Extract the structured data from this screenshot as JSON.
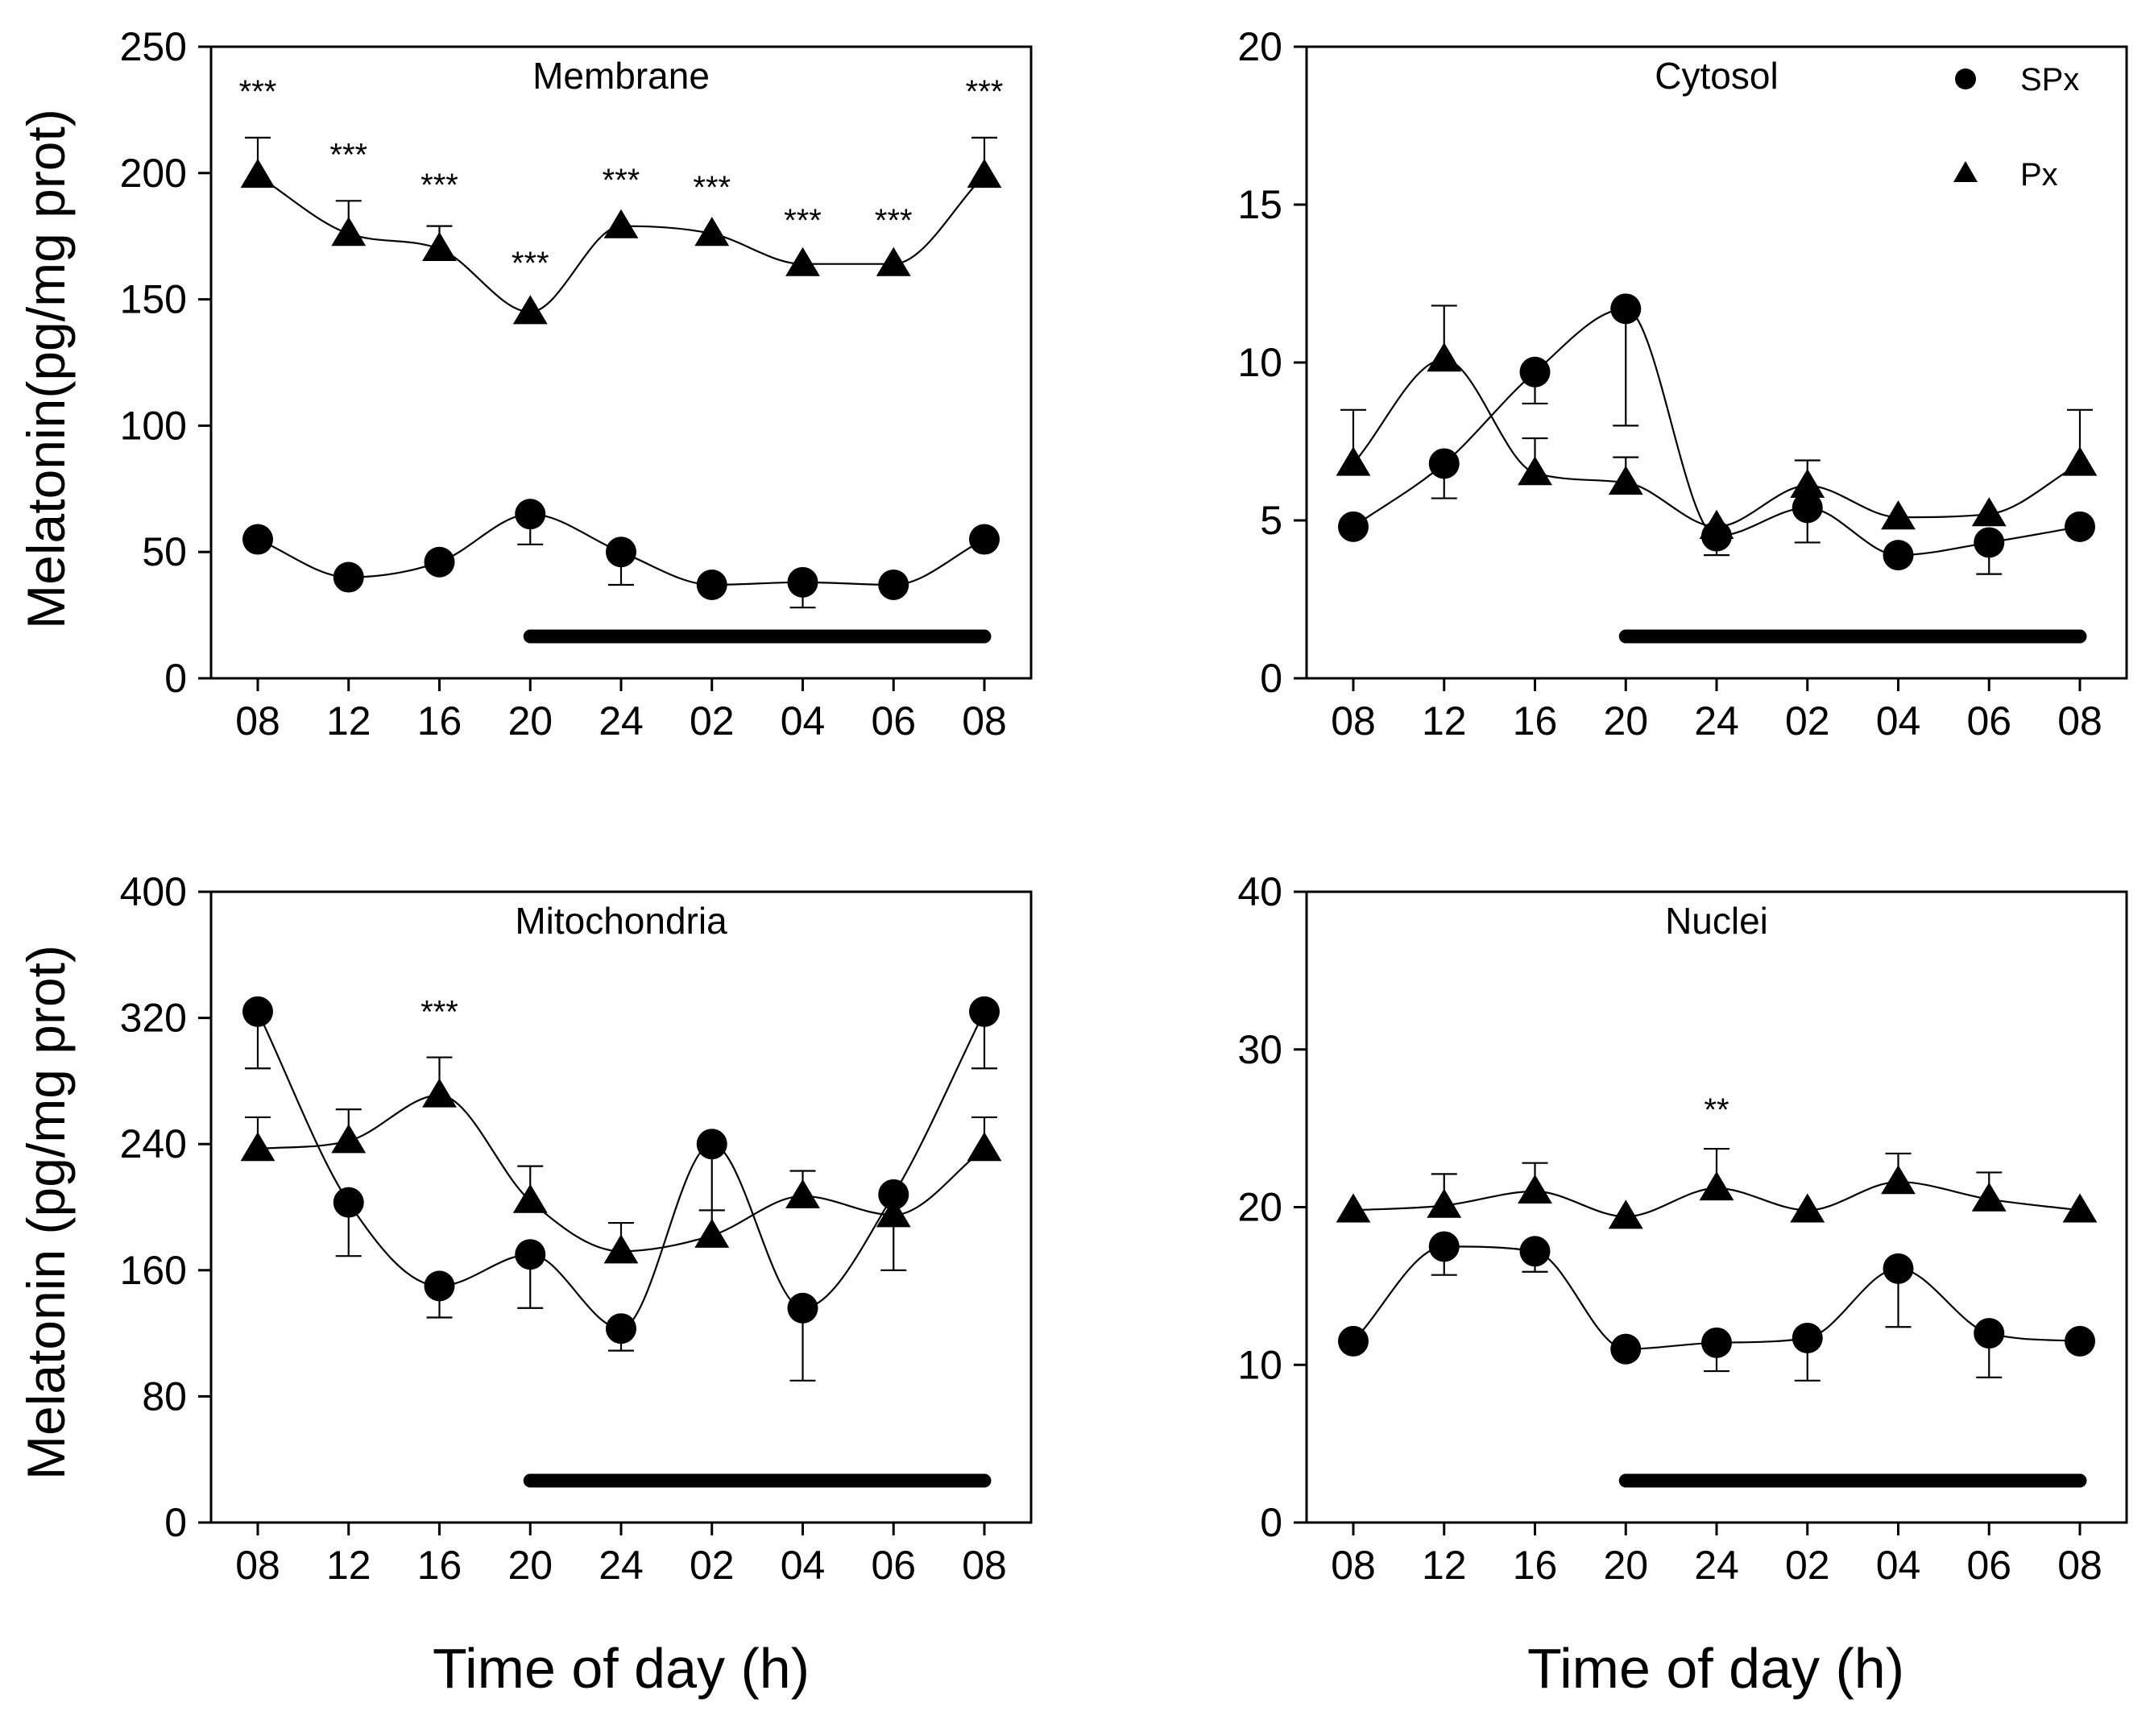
{
  "figure": {
    "y_label_top": "Melatonin(pg/mg prot)",
    "y_label_bottom": "Melatonin (pg/mg prot)",
    "x_label_left": "Time of day (h)",
    "x_label_right": "Time of day (h)",
    "legend": {
      "panel": 1,
      "position": "top-right",
      "items": [
        {
          "label": "SPx",
          "marker": "circle"
        },
        {
          "label": "Px",
          "marker": "triangle"
        }
      ]
    }
  },
  "chart_data": [
    {
      "type": "line",
      "title": "Membrane",
      "categories": [
        "08",
        "12",
        "16",
        "20",
        "24",
        "02",
        "04",
        "06",
        "08"
      ],
      "ylim": [
        0,
        250
      ],
      "yticks": [
        0,
        50,
        100,
        150,
        200,
        250
      ],
      "dark_phase": [
        3,
        8
      ],
      "series": [
        {
          "name": "SPx",
          "marker": "circle",
          "values": [
            55,
            40,
            46,
            65,
            50,
            37,
            38,
            37,
            55
          ],
          "errors": [
            0,
            0,
            0,
            12,
            13,
            0,
            10,
            0,
            0
          ],
          "err_dir": "down"
        },
        {
          "name": "Px",
          "marker": "triangle",
          "values": [
            199,
            176,
            170,
            145,
            179,
            176,
            164,
            164,
            199
          ],
          "errors": [
            15,
            13,
            9,
            0,
            0,
            0,
            0,
            0,
            15
          ],
          "err_dir": "up"
        }
      ],
      "annotations": [
        {
          "index": 0,
          "text": "***",
          "y": 228
        },
        {
          "index": 1,
          "text": "***",
          "y": 203
        },
        {
          "index": 2,
          "text": "***",
          "y": 191
        },
        {
          "index": 3,
          "text": "***",
          "y": 160
        },
        {
          "index": 4,
          "text": "***",
          "y": 193
        },
        {
          "index": 5,
          "text": "***",
          "y": 190
        },
        {
          "index": 6,
          "text": "***",
          "y": 177
        },
        {
          "index": 7,
          "text": "***",
          "y": 177
        },
        {
          "index": 8,
          "text": "***",
          "y": 228
        }
      ]
    },
    {
      "type": "line",
      "title": "Cytosol",
      "categories": [
        "08",
        "12",
        "16",
        "20",
        "24",
        "02",
        "04",
        "06",
        "08"
      ],
      "ylim": [
        0,
        20
      ],
      "yticks": [
        0,
        5,
        10,
        15,
        20
      ],
      "dark_phase": [
        3,
        8
      ],
      "series": [
        {
          "name": "SPx",
          "marker": "circle",
          "values": [
            4.8,
            6.8,
            9.7,
            11.7,
            4.5,
            5.4,
            3.9,
            4.3,
            4.8
          ],
          "errors": [
            0,
            1.1,
            1.0,
            3.7,
            0.6,
            1.1,
            0,
            1.0,
            0
          ],
          "err_dir": "down"
        },
        {
          "name": "Px",
          "marker": "triangle",
          "values": [
            6.8,
            10.1,
            6.5,
            6.2,
            4.8,
            6.1,
            5.1,
            5.2,
            6.8
          ],
          "errors": [
            1.7,
            1.7,
            1.1,
            0.8,
            0,
            0.8,
            0,
            0,
            1.7
          ],
          "err_dir": "up"
        }
      ],
      "annotations": []
    },
    {
      "type": "line",
      "title": "Mitochondria",
      "categories": [
        "08",
        "12",
        "16",
        "20",
        "24",
        "02",
        "04",
        "06",
        "08"
      ],
      "ylim": [
        0,
        400
      ],
      "yticks": [
        0,
        80,
        160,
        240,
        320,
        400
      ],
      "dark_phase": [
        3,
        8
      ],
      "series": [
        {
          "name": "SPx",
          "marker": "circle",
          "values": [
            324,
            203,
            150,
            170,
            123,
            240,
            136,
            208,
            324
          ],
          "errors": [
            36,
            34,
            20,
            34,
            14,
            42,
            46,
            48,
            36
          ],
          "err_dir": "down"
        },
        {
          "name": "Px",
          "marker": "triangle",
          "values": [
            237,
            242,
            271,
            204,
            172,
            182,
            207,
            195,
            237
          ],
          "errors": [
            20,
            20,
            24,
            22,
            18,
            16,
            16,
            0,
            20
          ],
          "err_dir": "up"
        }
      ],
      "annotations": [
        {
          "index": 2,
          "text": "***",
          "y": 317
        }
      ]
    },
    {
      "type": "line",
      "title": "Nuclei",
      "categories": [
        "08",
        "12",
        "16",
        "20",
        "24",
        "02",
        "04",
        "06",
        "08"
      ],
      "ylim": [
        0,
        40
      ],
      "yticks": [
        0,
        10,
        20,
        30,
        40
      ],
      "dark_phase": [
        3,
        8
      ],
      "series": [
        {
          "name": "SPx",
          "marker": "circle",
          "values": [
            11.5,
            17.5,
            17.2,
            11.0,
            11.4,
            11.7,
            16.1,
            12.0,
            11.5
          ],
          "errors": [
            0,
            1.8,
            1.3,
            0,
            1.8,
            2.7,
            3.7,
            2.8,
            0
          ],
          "err_dir": "down"
        },
        {
          "name": "Px",
          "marker": "triangle",
          "values": [
            19.8,
            20.1,
            21.0,
            19.4,
            21.2,
            19.8,
            21.6,
            20.5,
            19.8
          ],
          "errors": [
            0,
            2.0,
            1.8,
            0,
            2.5,
            0,
            1.8,
            1.7,
            0
          ],
          "err_dir": "up"
        }
      ],
      "annotations": [
        {
          "index": 4,
          "text": "**",
          "y": 25.5
        }
      ]
    }
  ]
}
